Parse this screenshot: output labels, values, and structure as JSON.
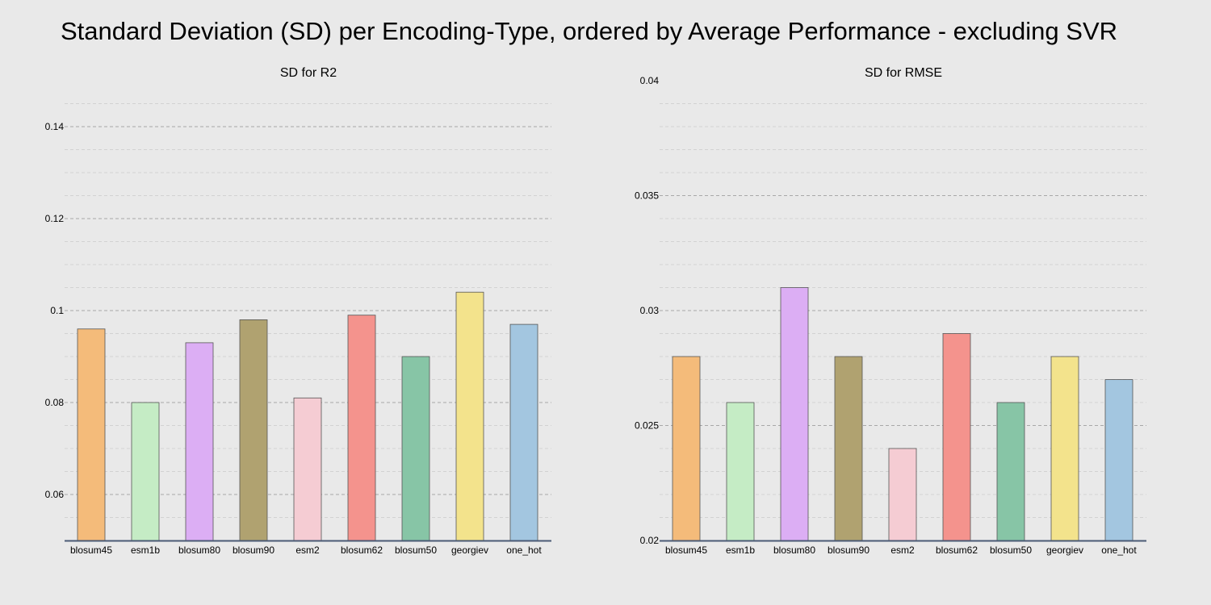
{
  "title": "Standard Deviation (SD) per Encoding-Type, ordered by Average Performance - excluding SVR",
  "colors": {
    "background": "#e9e9e9",
    "axis": "#4a5a75",
    "bar_stroke": "#555555",
    "grid_major": "#a8a8a8",
    "grid_minor": "#d2d2d2"
  },
  "chart_data": [
    {
      "type": "bar",
      "title": "SD for R2",
      "xlabel": "",
      "ylabel": "",
      "categories": [
        "blosum45",
        "esm1b",
        "blosum80",
        "blosum90",
        "esm2",
        "blosum62",
        "blosum50",
        "georgiev",
        "one_hot"
      ],
      "values": [
        0.096,
        0.08,
        0.093,
        0.098,
        0.081,
        0.099,
        0.09,
        0.104,
        0.097
      ],
      "colors": [
        "#f4bb7a",
        "#c5ecc5",
        "#dcaef4",
        "#b0a270",
        "#f5ccd3",
        "#f4938d",
        "#87c5a6",
        "#f3e38c",
        "#a3c6e0"
      ],
      "ylim": [
        0.05,
        0.145
      ],
      "yticks": [
        0.06,
        0.08,
        0.1,
        0.12,
        0.14
      ],
      "ytick_labels": [
        "0.06",
        "0.08",
        "0.1",
        "0.12",
        "0.14"
      ],
      "grid": true
    },
    {
      "type": "bar",
      "title": "SD for RMSE",
      "xlabel": "",
      "ylabel": "",
      "categories": [
        "blosum45",
        "esm1b",
        "blosum80",
        "blosum90",
        "esm2",
        "blosum62",
        "blosum50",
        "georgiev",
        "one_hot"
      ],
      "values": [
        0.028,
        0.026,
        0.031,
        0.028,
        0.024,
        0.029,
        0.026,
        0.028,
        0.027
      ],
      "colors": [
        "#f4bb7a",
        "#c5ecc5",
        "#dcaef4",
        "#b0a270",
        "#f5ccd3",
        "#f4938d",
        "#87c5a6",
        "#f3e38c",
        "#a3c6e0"
      ],
      "ylim": [
        0.02,
        0.04
      ],
      "yticks": [
        0.02,
        0.025,
        0.03,
        0.035,
        0.04
      ],
      "ytick_labels": [
        "0.02",
        "0.025",
        "0.03",
        "0.035",
        "0.04"
      ],
      "grid": true
    }
  ]
}
